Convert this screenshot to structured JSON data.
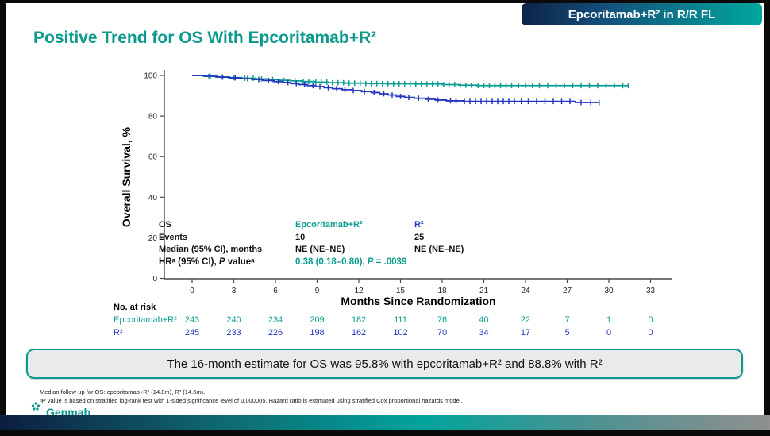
{
  "header": {
    "badge": "Epcoritamab+R² in R/R FL",
    "title": "Positive Trend for OS With Epcoritamab+R²"
  },
  "chart_data": {
    "type": "line",
    "subtype": "kaplan-meier-step",
    "xlabel": "Months Since Randomization",
    "ylabel": "Overall Survival, %",
    "xlim": [
      0,
      33
    ],
    "ylim": [
      0,
      100
    ],
    "xticks": [
      0,
      3,
      6,
      9,
      12,
      15,
      18,
      21,
      24,
      27,
      30,
      33
    ],
    "yticks": [
      0,
      20,
      40,
      60,
      80,
      100
    ],
    "grid": false,
    "series": [
      {
        "id": "epcor",
        "name": "Epcoritamab+R²",
        "color": "#0b9d91",
        "points": [
          [
            0,
            100
          ],
          [
            0.8,
            99.6
          ],
          [
            1.7,
            99.2
          ],
          [
            2.6,
            98.9
          ],
          [
            3.6,
            98.6
          ],
          [
            4.6,
            98.3
          ],
          [
            5.5,
            98.0
          ],
          [
            6.3,
            97.6
          ],
          [
            7.1,
            97.3
          ],
          [
            7.9,
            97.0
          ],
          [
            8.8,
            96.7
          ],
          [
            9.8,
            96.4
          ],
          [
            11.0,
            96.2
          ],
          [
            12.5,
            96.0
          ],
          [
            14.0,
            95.9
          ],
          [
            16.0,
            95.8
          ],
          [
            18.0,
            95.5
          ],
          [
            19.2,
            95.2
          ],
          [
            20.5,
            95.0
          ],
          [
            31.4,
            95.0
          ]
        ],
        "censors": [
          1.2,
          2.1,
          3.0,
          3.8,
          4.4,
          5.0,
          5.8,
          6.6,
          7.4,
          8.0,
          8.4,
          8.9,
          9.3,
          9.7,
          10.1,
          10.5,
          10.9,
          11.3,
          11.7,
          12.1,
          12.5,
          12.9,
          13.3,
          13.7,
          14.1,
          14.5,
          14.9,
          15.3,
          15.7,
          16.1,
          16.5,
          16.9,
          17.3,
          17.7,
          18.1,
          18.5,
          18.9,
          19.3,
          19.7,
          20.1,
          20.6,
          21.0,
          21.4,
          21.8,
          22.2,
          22.6,
          23.0,
          23.5,
          24.0,
          24.5,
          25.0,
          25.6,
          26.2,
          26.8,
          27.4,
          28.0,
          28.6,
          29.2,
          29.8,
          30.4,
          31.0,
          31.4
        ]
      },
      {
        "id": "r2",
        "name": "R²",
        "color": "#2335bf",
        "points": [
          [
            0,
            100
          ],
          [
            0.9,
            99.6
          ],
          [
            1.8,
            99.2
          ],
          [
            2.7,
            98.8
          ],
          [
            3.5,
            98.4
          ],
          [
            4.3,
            98.0
          ],
          [
            5.1,
            97.5
          ],
          [
            5.9,
            97.0
          ],
          [
            6.5,
            96.5
          ],
          [
            7.1,
            96.0
          ],
          [
            7.7,
            95.5
          ],
          [
            8.3,
            95.0
          ],
          [
            8.9,
            94.5
          ],
          [
            9.5,
            94.0
          ],
          [
            10.1,
            93.5
          ],
          [
            10.8,
            93.0
          ],
          [
            11.5,
            92.6
          ],
          [
            12.2,
            92.1
          ],
          [
            12.9,
            91.6
          ],
          [
            13.5,
            91.0
          ],
          [
            14.1,
            90.4
          ],
          [
            14.7,
            89.7
          ],
          [
            15.3,
            89.2
          ],
          [
            16.0,
            88.8
          ],
          [
            16.8,
            88.3
          ],
          [
            17.5,
            87.9
          ],
          [
            18.3,
            87.5
          ],
          [
            19.5,
            87.2
          ],
          [
            27.6,
            86.7
          ],
          [
            29.3,
            86.7
          ]
        ],
        "censors": [
          1.3,
          2.2,
          3.1,
          4.0,
          4.8,
          5.5,
          6.2,
          6.9,
          7.5,
          8.1,
          8.7,
          9.2,
          9.8,
          10.4,
          11.0,
          11.6,
          12.4,
          13.1,
          13.8,
          14.4,
          15.0,
          15.6,
          16.3,
          17.0,
          17.7,
          18.6,
          19.0,
          19.6,
          20.0,
          20.4,
          20.8,
          21.2,
          21.6,
          22.0,
          22.4,
          22.8,
          23.2,
          23.7,
          24.2,
          24.8,
          25.4,
          26.0,
          26.6,
          27.2,
          28.0,
          28.7,
          29.3
        ]
      }
    ],
    "annotations": {
      "hazard_ratio": "0.38 (0.18–0.80)",
      "p_value": ".0039",
      "estimate_16mo_epcor": "95.8%",
      "estimate_16mo_r2": "88.8%"
    }
  },
  "stats": {
    "col_header": {
      "label": "OS",
      "epcor": "Epcoritamab+R²",
      "r2": "R²"
    },
    "events": {
      "label": "Events",
      "epcor": "10",
      "r2": "25"
    },
    "median": {
      "label": "Median (95% CI), months",
      "epcor": "NE (NE–NE)",
      "r2": "NE (NE–NE)"
    },
    "hr": {
      "label_pre": "HRᵃ (95% CI), ",
      "label_p": "P",
      "label_post": " valueᵃ",
      "value_pre": "0.38 (0.18–0.80), ",
      "value_p": "P",
      "value_post": " = .0039"
    }
  },
  "at_risk": {
    "title": "No. at risk",
    "rows": [
      {
        "name": "Epcoritamab+R²",
        "color": "#0b9d91",
        "values": [
          243,
          240,
          234,
          209,
          182,
          111,
          76,
          40,
          22,
          7,
          1,
          0
        ]
      },
      {
        "name": "R²",
        "color": "#2335bf",
        "values": [
          245,
          233,
          226,
          198,
          162,
          102,
          70,
          34,
          17,
          5,
          0,
          0
        ]
      }
    ]
  },
  "callout": {
    "text": "The 16-month estimate for OS was 95.8% with epcoritamab+R² and 88.8% with R²"
  },
  "footnotes": {
    "line1": "Median follow-up for OS: epcoritamab+R² (14.8m), R² (14.6m).",
    "line2": "ᵃP value is based on stratified log-rank test with 1-sided significance level of 0.000005. Hazard ratio is estimated using stratified Cox proportional hazards model."
  },
  "footer": {
    "logo_text": "Genmab"
  },
  "colors": {
    "teal": "#0b9d91",
    "blue": "#2335bf",
    "navy": "#0d1d42",
    "gray": "#909090"
  }
}
